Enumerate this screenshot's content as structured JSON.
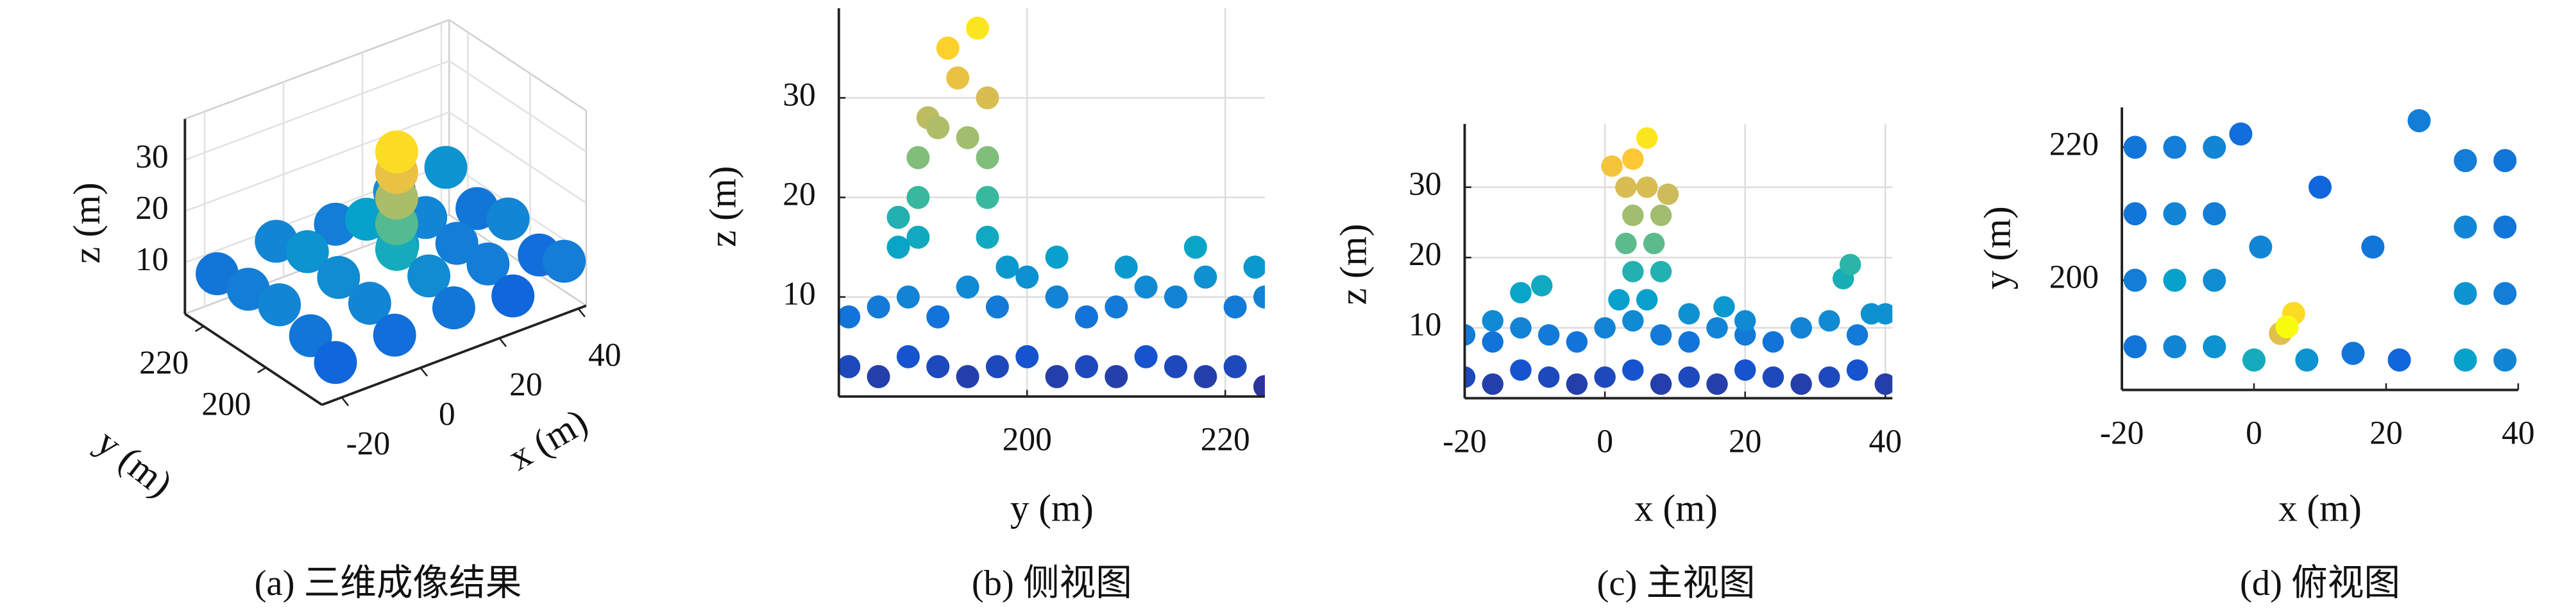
{
  "chart_data": [
    {
      "type": "scatter3d",
      "caption": "(a) 三维成像结果",
      "xlabel": "x (m)",
      "ylabel": "y (m)",
      "zlabel": "z (m)",
      "xlim": [
        -25,
        42
      ],
      "ylim": [
        182,
        226
      ],
      "zlim": [
        0,
        38
      ],
      "xticks": [
        -20,
        0,
        20,
        40
      ],
      "yticks": [
        200,
        220
      ],
      "zticks": [
        10,
        20,
        30
      ],
      "colormap": [
        "#352a87",
        "#0f5cdd",
        "#1481d6",
        "#06a4ca",
        "#2eb7a4",
        "#87bf77",
        "#d1bb59",
        "#fec832",
        "#f9fb0e"
      ],
      "x": [
        -20,
        -5,
        10,
        25,
        38,
        -20,
        -5,
        10,
        25,
        38,
        -20,
        -5,
        10,
        25,
        38,
        5,
        5,
        5,
        5,
        5,
        -20,
        -5,
        10,
        25,
        38,
        -20,
        -5,
        10,
        25,
        38
      ],
      "y": [
        222,
        222,
        222,
        222,
        222,
        212,
        212,
        212,
        212,
        212,
        202,
        202,
        202,
        202,
        202,
        196,
        196,
        196,
        196,
        196,
        192,
        192,
        192,
        192,
        192,
        184,
        184,
        184,
        184,
        184
      ],
      "z": [
        8,
        10,
        9,
        11,
        12,
        9,
        12,
        14,
        10,
        8,
        10,
        11,
        13,
        9,
        10,
        16,
        21,
        26,
        31,
        35,
        8,
        10,
        11,
        9,
        7,
        6,
        7,
        8,
        6,
        9
      ]
    },
    {
      "type": "scatter",
      "caption": "(b) 侧视图",
      "xlabel": "y (m)",
      "ylabel": "z (m)",
      "grid": true,
      "xlim": [
        181,
        224
      ],
      "ylim": [
        0,
        39
      ],
      "xticks": [
        200,
        220
      ],
      "yticks": [
        10,
        20,
        30
      ],
      "x": [
        182,
        185,
        188,
        191,
        194,
        197,
        200,
        203,
        206,
        209,
        212,
        215,
        218,
        221,
        224,
        182,
        185,
        188,
        191,
        194,
        197,
        200,
        203,
        206,
        209,
        212,
        215,
        218,
        221,
        224,
        189,
        189,
        189,
        196,
        196,
        196,
        190,
        193,
        196,
        192,
        195,
        187,
        187,
        198,
        203,
        210,
        217,
        223,
        191,
        194
      ],
      "y": [
        3,
        2,
        4,
        3,
        2,
        3,
        4,
        2,
        3,
        2,
        4,
        3,
        2,
        3,
        1,
        8,
        9,
        10,
        8,
        11,
        9,
        12,
        10,
        8,
        9,
        11,
        10,
        12,
        9,
        10,
        16,
        20,
        24,
        16,
        20,
        24,
        28,
        32,
        30,
        35,
        37,
        15,
        18,
        13,
        14,
        13,
        15,
        13,
        27,
        26
      ]
    },
    {
      "type": "scatter",
      "caption": "(c) 主视图",
      "xlabel": "x (m)",
      "ylabel": "z (m)",
      "grid": true,
      "xlim": [
        -20,
        41
      ],
      "ylim": [
        0,
        39
      ],
      "xticks": [
        -20,
        0,
        20,
        40
      ],
      "yticks": [
        10,
        20,
        30
      ],
      "x": [
        -20,
        -16,
        -12,
        -8,
        -4,
        0,
        4,
        8,
        12,
        16,
        20,
        24,
        28,
        32,
        36,
        40,
        -20,
        -16,
        -12,
        -8,
        -4,
        0,
        4,
        8,
        12,
        16,
        20,
        24,
        28,
        32,
        36,
        40,
        2,
        6,
        4,
        8,
        3,
        7,
        4,
        8,
        3,
        6,
        4,
        6,
        1,
        9,
        -12,
        -9,
        34,
        35,
        -16,
        12,
        20,
        28,
        38,
        17
      ],
      "y": [
        3,
        2,
        4,
        3,
        2,
        3,
        4,
        2,
        3,
        2,
        4,
        3,
        2,
        3,
        4,
        2,
        9,
        8,
        10,
        9,
        8,
        10,
        11,
        9,
        8,
        10,
        9,
        8,
        10,
        11,
        9,
        12,
        14,
        14,
        18,
        18,
        22,
        22,
        26,
        26,
        30,
        30,
        34,
        37,
        33,
        29,
        15,
        16,
        17,
        19,
        11,
        12,
        11,
        10,
        12,
        13
      ]
    },
    {
      "type": "scatter",
      "caption": "(d) 俯视图",
      "xlabel": "x (m)",
      "ylabel": "y (m)",
      "grid": false,
      "xlim": [
        -20,
        40
      ],
      "ylim": [
        183.5,
        226
      ],
      "xticks": [
        -20,
        0,
        20,
        40
      ],
      "yticks": [
        200,
        220
      ],
      "x": [
        -18,
        -12,
        -6,
        -18,
        -12,
        -6,
        -18,
        -12,
        -6,
        -18,
        -12,
        -6,
        32,
        38,
        32,
        38,
        32,
        38,
        32,
        38,
        0,
        8,
        15,
        22,
        -2,
        10,
        18,
        25,
        1,
        4,
        6,
        5
      ],
      "y": [
        190,
        190,
        190,
        200,
        200,
        200,
        210,
        210,
        210,
        220,
        220,
        220,
        188,
        188,
        198,
        198,
        208,
        208,
        218,
        218,
        188,
        188,
        189,
        188,
        222,
        214,
        205,
        224,
        205,
        192,
        195,
        193
      ],
      "z": [
        8,
        10,
        12,
        9,
        14,
        11,
        8,
        10,
        9,
        8,
        9,
        10,
        14,
        10,
        12,
        9,
        10,
        8,
        9,
        8,
        16,
        12,
        8,
        6,
        7,
        6,
        8,
        9,
        10,
        30,
        35,
        38
      ]
    }
  ]
}
